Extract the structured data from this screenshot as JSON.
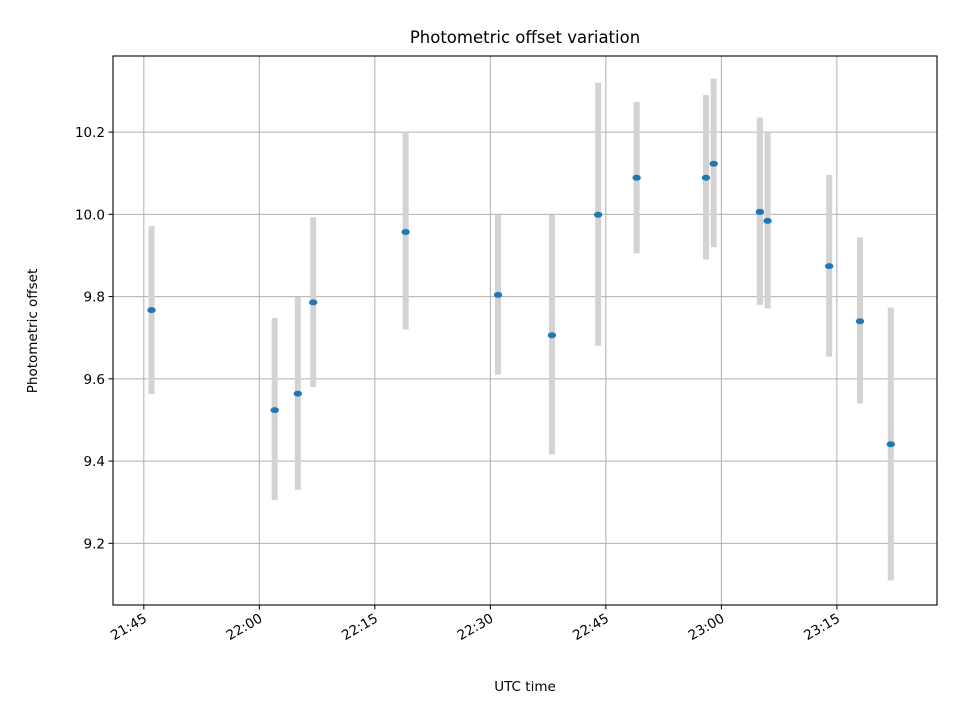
{
  "chart_data": {
    "type": "scatter",
    "title": "Photometric offset variation",
    "xlabel": "UTC time",
    "ylabel": "Photometric offset",
    "x_ticks": [
      "21:45",
      "22:00",
      "22:15",
      "22:30",
      "22:45",
      "23:00",
      "23:15"
    ],
    "y_ticks": [
      "9.2",
      "9.4",
      "9.6",
      "9.8",
      "10.0",
      "10.2"
    ],
    "xlim": [
      "21:41",
      "23:28"
    ],
    "ylim": [
      9.05,
      10.385
    ],
    "grid": true,
    "series": [
      {
        "marker_color": "#1f77b4",
        "errorbar_color": "#d3d3d3",
        "points": [
          {
            "time": "21:46",
            "y": 9.767,
            "ylow": 9.563,
            "yhigh": 9.971
          },
          {
            "time": "22:02",
            "y": 9.524,
            "ylow": 9.305,
            "yhigh": 9.748
          },
          {
            "time": "22:05",
            "y": 9.564,
            "ylow": 9.33,
            "yhigh": 9.799
          },
          {
            "time": "22:07",
            "y": 9.786,
            "ylow": 9.58,
            "yhigh": 9.993
          },
          {
            "time": "22:19",
            "y": 9.957,
            "ylow": 9.72,
            "yhigh": 10.2
          },
          {
            "time": "22:31",
            "y": 9.804,
            "ylow": 9.61,
            "yhigh": 9.999
          },
          {
            "time": "22:38",
            "y": 9.706,
            "ylow": 9.416,
            "yhigh": 9.999
          },
          {
            "time": "22:44",
            "y": 9.999,
            "ylow": 9.68,
            "yhigh": 10.32
          },
          {
            "time": "22:49",
            "y": 10.089,
            "ylow": 9.905,
            "yhigh": 10.273
          },
          {
            "time": "22:58",
            "y": 10.089,
            "ylow": 9.89,
            "yhigh": 10.29
          },
          {
            "time": "22:59",
            "y": 10.123,
            "ylow": 9.92,
            "yhigh": 10.33
          },
          {
            "time": "23:05",
            "y": 10.006,
            "ylow": 9.78,
            "yhigh": 10.232
          },
          {
            "time": "23:05",
            "y": 10.006,
            "ylow": 9.78,
            "yhigh": 10.235
          },
          {
            "time": "23:06",
            "y": 9.984,
            "ylow": 9.771,
            "yhigh": 10.198
          },
          {
            "time": "23:14",
            "y": 9.874,
            "ylow": 9.654,
            "yhigh": 10.096
          },
          {
            "time": "23:18",
            "y": 9.74,
            "ylow": 9.54,
            "yhigh": 9.944
          },
          {
            "time": "23:22",
            "y": 9.441,
            "ylow": 9.11,
            "yhigh": 9.773
          }
        ]
      }
    ]
  }
}
